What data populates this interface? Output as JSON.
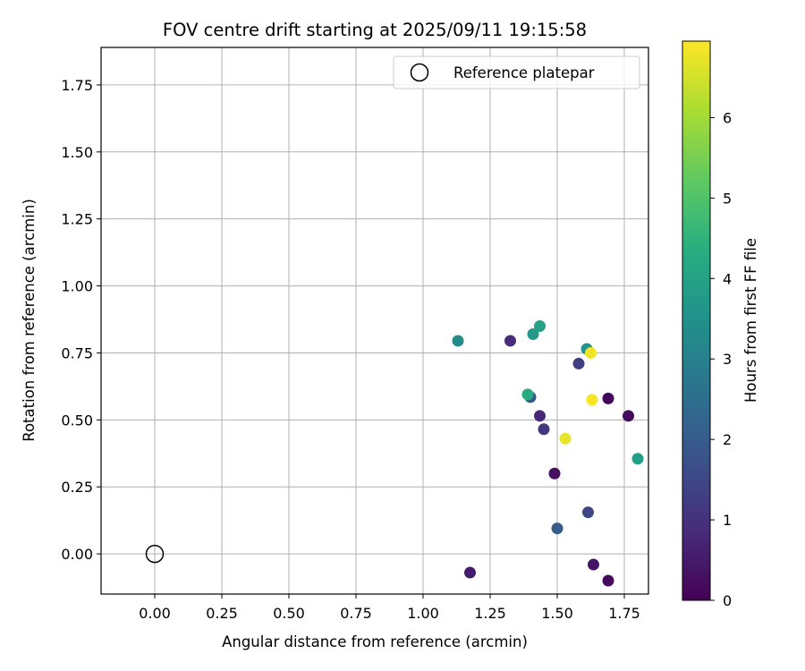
{
  "chart_data": {
    "type": "scatter",
    "title": "FOV centre drift starting at 2025/09/11 19:15:58",
    "xlabel": "Angular distance from reference (arcmin)",
    "ylabel": "Rotation from reference (arcmin)",
    "xlim": [
      -0.2,
      1.84
    ],
    "ylim": [
      -0.15,
      1.89
    ],
    "x_ticks": [
      "0.00",
      "0.25",
      "0.50",
      "0.75",
      "1.00",
      "1.25",
      "1.50",
      "1.75"
    ],
    "y_ticks": [
      "0.00",
      "0.25",
      "0.50",
      "0.75",
      "1.00",
      "1.25",
      "1.50",
      "1.75"
    ],
    "grid": true,
    "colormap": "viridis",
    "colorbar": {
      "label": "Hours from first FF file",
      "range": [
        0,
        6.95
      ],
      "ticks": [
        "0",
        "1",
        "2",
        "3",
        "4",
        "5",
        "6"
      ]
    },
    "legend": {
      "position": "top-right",
      "entries": [
        "Reference platepar"
      ]
    },
    "reference_point": {
      "x": 0.0,
      "y": 0.0,
      "label": "Reference platepar"
    },
    "points": [
      {
        "x": 1.69,
        "y": 0.58,
        "hours": 0.1
      },
      {
        "x": 1.69,
        "y": -0.1,
        "hours": 0.2
      },
      {
        "x": 1.765,
        "y": 0.515,
        "hours": 0.2
      },
      {
        "x": 1.49,
        "y": 0.3,
        "hours": 0.3
      },
      {
        "x": 1.635,
        "y": -0.04,
        "hours": 0.4
      },
      {
        "x": 1.175,
        "y": -0.07,
        "hours": 0.5
      },
      {
        "x": 1.435,
        "y": 0.515,
        "hours": 0.8
      },
      {
        "x": 1.325,
        "y": 0.795,
        "hours": 0.9
      },
      {
        "x": 1.45,
        "y": 0.465,
        "hours": 1.1
      },
      {
        "x": 1.58,
        "y": 0.71,
        "hours": 1.3
      },
      {
        "x": 1.615,
        "y": 0.155,
        "hours": 1.5
      },
      {
        "x": 1.4,
        "y": 0.585,
        "hours": 1.9
      },
      {
        "x": 1.5,
        "y": 0.095,
        "hours": 2.0
      },
      {
        "x": 1.13,
        "y": 0.795,
        "hours": 3.3
      },
      {
        "x": 1.61,
        "y": 0.765,
        "hours": 3.5
      },
      {
        "x": 1.41,
        "y": 0.82,
        "hours": 3.7
      },
      {
        "x": 1.8,
        "y": 0.355,
        "hours": 3.9
      },
      {
        "x": 1.435,
        "y": 0.85,
        "hours": 4.0
      },
      {
        "x": 1.39,
        "y": 0.595,
        "hours": 4.3
      },
      {
        "x": 1.53,
        "y": 0.43,
        "hours": 6.7
      },
      {
        "x": 1.625,
        "y": 0.75,
        "hours": 6.8
      },
      {
        "x": 1.63,
        "y": 0.575,
        "hours": 6.9
      }
    ]
  }
}
